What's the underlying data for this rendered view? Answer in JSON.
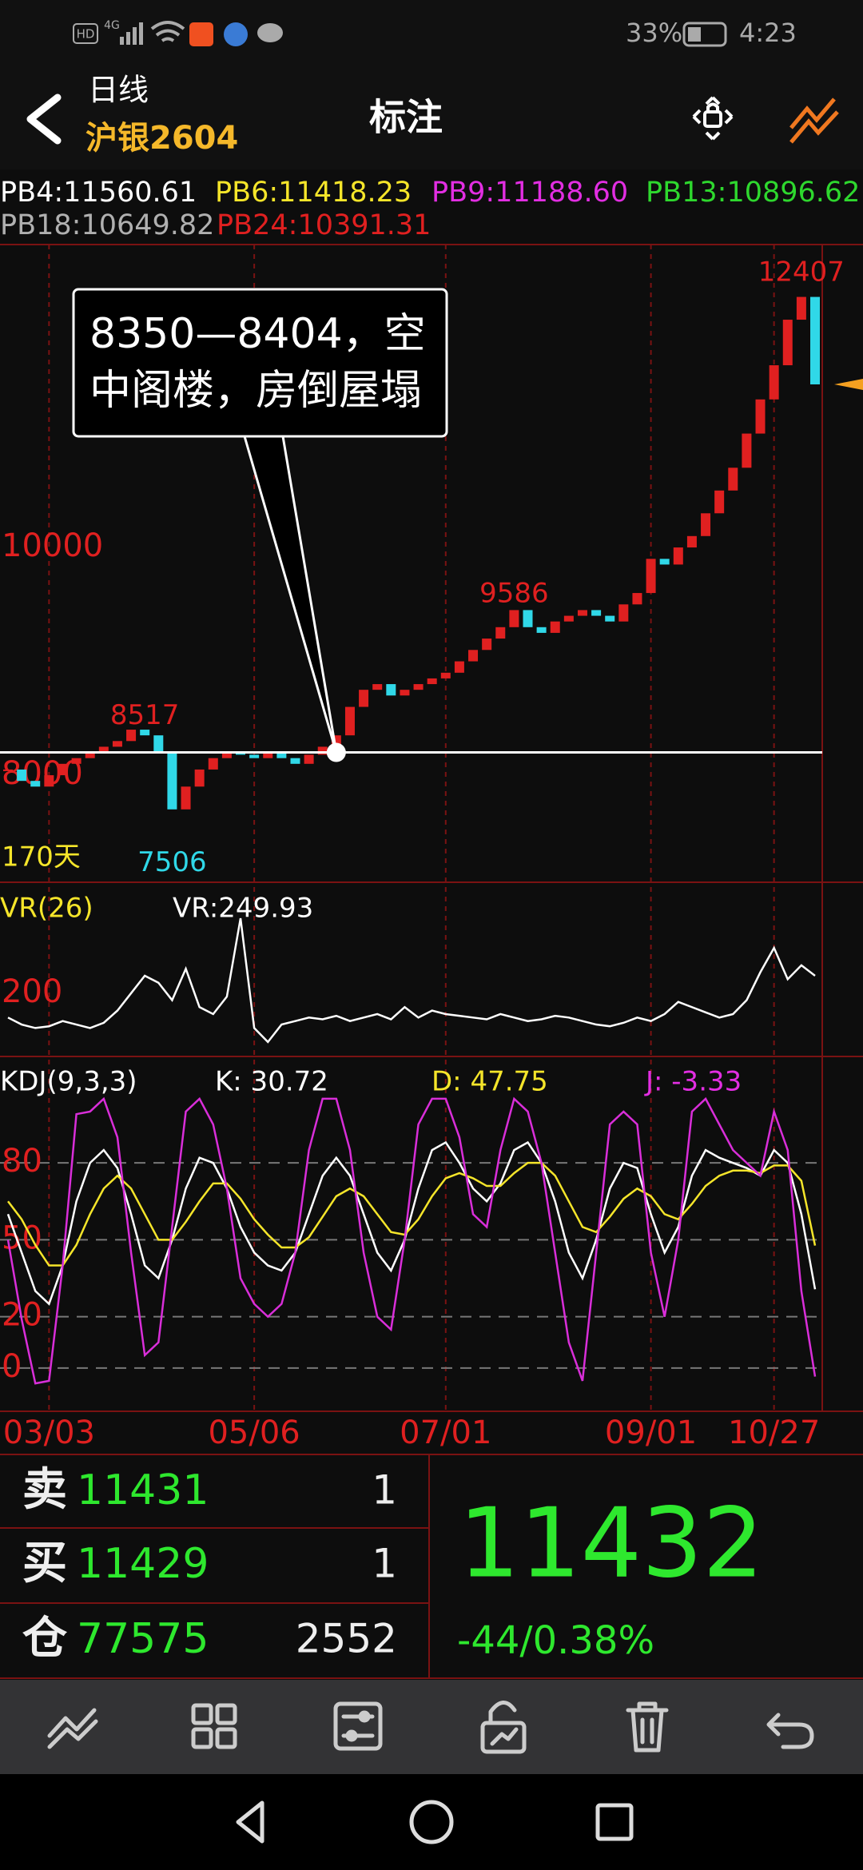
{
  "status_bar": {
    "hd": "HD",
    "net": "4G",
    "battery": "33%",
    "time": "4:23"
  },
  "header": {
    "period": "日线",
    "symbol": "沪银2604",
    "title": "标注"
  },
  "chart_data": [
    {
      "type": "candlestick",
      "legend": [
        {
          "text": "PB4:11560.61",
          "color": "#ffffff"
        },
        {
          "text": "PB6:11418.23",
          "color": "#f5e52a"
        },
        {
          "text": "PB9:11188.60",
          "color": "#e22ee2"
        },
        {
          "text": "PB13:10896.62",
          "color": "#2ed82e"
        },
        {
          "text": "PB18:10649.82",
          "color": "#b0b0b0"
        },
        {
          "text": "PB24:10391.31",
          "color": "#e02020"
        }
      ],
      "categories": [
        null,
        null,
        null,
        "03/03",
        null,
        null,
        null,
        null,
        null,
        null,
        null,
        null,
        null,
        null,
        null,
        null,
        null,
        null,
        "05/06",
        null,
        null,
        null,
        null,
        null,
        null,
        null,
        null,
        null,
        null,
        null,
        null,
        null,
        "07/01",
        null,
        null,
        null,
        null,
        null,
        null,
        null,
        null,
        null,
        null,
        null,
        null,
        null,
        null,
        "09/01",
        null,
        null,
        null,
        null,
        null,
        null,
        null,
        null,
        "10/27",
        null,
        null,
        null
      ],
      "values": [
        8050,
        7950,
        7900,
        8000,
        8100,
        8150,
        8200,
        8250,
        8300,
        8400,
        8350,
        8200,
        7700,
        7900,
        8050,
        8150,
        8200,
        8180,
        8150,
        8200,
        8150,
        8100,
        8180,
        8250,
        8350,
        8600,
        8750,
        8800,
        8700,
        8750,
        8800,
        8850,
        8900,
        9000,
        9100,
        9200,
        9300,
        9450,
        9300,
        9250,
        9350,
        9400,
        9450,
        9400,
        9350,
        9500,
        9600,
        9900,
        9850,
        10000,
        10100,
        10300,
        10500,
        10700,
        11000,
        11300,
        11600,
        12000,
        12200,
        11432
      ],
      "up_color": "#e02020",
      "down_color": "#30d8e8",
      "ylim": [
        7060,
        12660
      ],
      "yticks": [
        8000,
        10000
      ],
      "extremes": [
        {
          "value": 12407,
          "category_index": 58
        },
        {
          "value": 9586,
          "category_index": 37
        },
        {
          "value": 8517,
          "category_index": 10
        },
        {
          "value": 7506,
          "category_index": 12
        }
      ],
      "reference_line": 8200,
      "callout": {
        "lines": [
          "8350—8404，空",
          "中阁楼，房倒屋塌"
        ],
        "category_index": 24
      },
      "period_label": "170天"
    },
    {
      "type": "line",
      "legend_texts": {
        "name": "VR(26)",
        "value": "VR:249.93"
      },
      "values": [
        130,
        110,
        100,
        105,
        120,
        110,
        100,
        115,
        150,
        200,
        250,
        230,
        180,
        270,
        160,
        140,
        190,
        415,
        100,
        60,
        110,
        120,
        130,
        125,
        135,
        120,
        130,
        140,
        125,
        160,
        130,
        150,
        140,
        135,
        130,
        125,
        140,
        130,
        120,
        125,
        135,
        130,
        120,
        110,
        105,
        115,
        130,
        120,
        140,
        175,
        160,
        145,
        130,
        140,
        180,
        260,
        330,
        240,
        280,
        249.93
      ],
      "color": "#ffffff",
      "ylim": [
        0,
        500
      ],
      "yticks": [
        200
      ]
    },
    {
      "type": "line",
      "legend_texts": {
        "name": "KDJ(9,3,3)",
        "k": "K: 30.72",
        "d": "D: 47.75",
        "j": "J: -3.33"
      },
      "series": [
        {
          "color": "#ffffff",
          "values": [
            60,
            45,
            30,
            25,
            40,
            65,
            80,
            85,
            78,
            60,
            40,
            35,
            50,
            70,
            82,
            80,
            70,
            55,
            45,
            40,
            38,
            45,
            60,
            75,
            82,
            75,
            60,
            45,
            38,
            50,
            70,
            85,
            88,
            80,
            70,
            65,
            72,
            85,
            88,
            80,
            65,
            45,
            35,
            50,
            70,
            80,
            78,
            60,
            45,
            55,
            75,
            85,
            82,
            80,
            78,
            75,
            85,
            80,
            60,
            30.72
          ]
        },
        {
          "color": "#f5e52a",
          "values": [
            65,
            58,
            48,
            40,
            40,
            48,
            60,
            70,
            75,
            70,
            60,
            50,
            50,
            57,
            65,
            72,
            72,
            66,
            58,
            52,
            47,
            47,
            51,
            59,
            67,
            70,
            67,
            60,
            53,
            52,
            58,
            67,
            74,
            76,
            74,
            71,
            71,
            76,
            80,
            80,
            75,
            65,
            55,
            53,
            59,
            66,
            70,
            67,
            60,
            58,
            64,
            71,
            75,
            77,
            77,
            76,
            79,
            79,
            73,
            47.75
          ]
        },
        {
          "color": "#d92ed9",
          "values": [
            50,
            19,
            -6,
            -5,
            40,
            99,
            100,
            105,
            90,
            45,
            5,
            10,
            55,
            100,
            105,
            95,
            70,
            35,
            25,
            20,
            25,
            45,
            85,
            105,
            105,
            85,
            45,
            20,
            15,
            50,
            95,
            105,
            105,
            90,
            60,
            55,
            85,
            105,
            100,
            80,
            45,
            10,
            -5,
            45,
            95,
            100,
            95,
            45,
            20,
            50,
            100,
            105,
            95,
            85,
            80,
            75,
            100,
            85,
            30,
            -3.33
          ]
        }
      ],
      "ylim": [
        -15,
        119
      ],
      "yticks": [
        0,
        20,
        50,
        80
      ],
      "grid": true
    }
  ],
  "quote": {
    "rows": [
      {
        "label": "卖",
        "price": 11431,
        "qty": 1
      },
      {
        "label": "买",
        "price": 11429,
        "qty": 1
      },
      {
        "label": "仓",
        "price": 77575,
        "qty": 2552
      }
    ],
    "last": 11432,
    "change": "-44/0.38%"
  }
}
